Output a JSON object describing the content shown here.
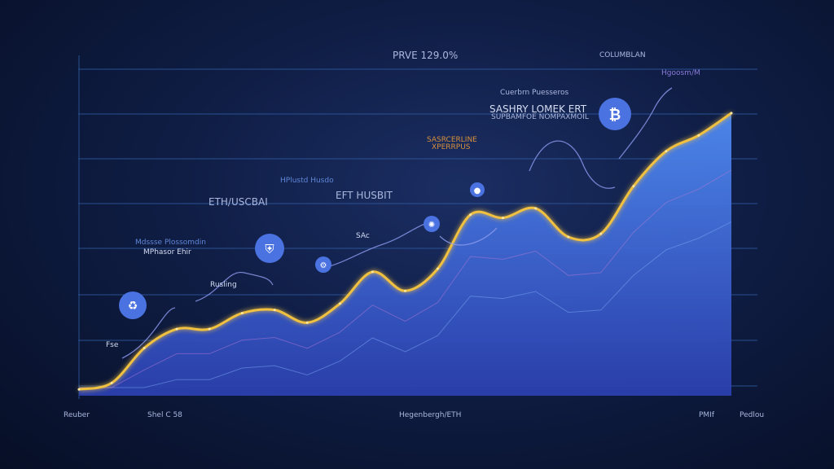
{
  "chart_data": {
    "type": "area",
    "title": "PRVE 129.0%",
    "xlabel": "",
    "ylabel": "",
    "top_right_label": "COLUMBLAN",
    "x_tick_labels": [
      "Reuber",
      "Shel C 58",
      "Hegenbergh/ETH",
      "PMIf",
      "Pedlou"
    ],
    "ylim": [
      0,
      100
    ],
    "grid": true,
    "series": [
      {
        "x": [
          0,
          5,
          10,
          15,
          20,
          25,
          30,
          35,
          40,
          45,
          50,
          55,
          60,
          65,
          70,
          75,
          80,
          85,
          90,
          95,
          100
        ],
        "values": [
          2,
          4,
          15,
          21,
          21,
          26,
          27,
          23,
          29,
          39,
          33,
          40,
          57,
          56,
          59,
          50,
          51,
          66,
          77,
          82,
          89
        ]
      }
    ],
    "annotations": [
      {
        "text": "PRVE 129.0%",
        "color": "#aab8de"
      },
      {
        "text": "COLUMBLAN",
        "color": "#aab8de"
      },
      {
        "text": "Hgoosm/M",
        "color": "#8a7bd8"
      },
      {
        "text": "Cuerbrn Puesseros",
        "color": "#aab8de"
      },
      {
        "text": "SASHRY LOMEK ERT",
        "color": "#d5ddf3"
      },
      {
        "text": "SUPBAMFOE NOMPAXMOIL",
        "color": "#aab8de"
      },
      {
        "text": "SASRCERLINE",
        "color": "#d8903a"
      },
      {
        "text": "XPERRPUS",
        "color": "#d8903a"
      },
      {
        "text": "HPlustd Husdo",
        "color": "#5f86d6"
      },
      {
        "text": "EFT HUSBIT",
        "color": "#aab8de"
      },
      {
        "text": "ETH/USCBAI",
        "color": "#aab8de"
      },
      {
        "text": "Mdssse Plossomdin",
        "color": "#5f86d6"
      },
      {
        "text": "MPhasor Ehir",
        "color": "#d5ddf3"
      },
      {
        "text": "Rusling",
        "color": "#d5ddf3"
      },
      {
        "text": "SAc",
        "color": "#d5ddf3"
      },
      {
        "text": "Fse",
        "color": "#d5ddf3"
      }
    ],
    "icons": [
      "recycle-icon",
      "shield-icon",
      "robot-icon",
      "atom-icon",
      "apple-icon",
      "bitcoin-icon"
    ],
    "colors": {
      "area_top": "#4d86ee",
      "area_bottom": "#2a3fb0",
      "line": "#f0c040",
      "grid": "#2f5aa0",
      "axis": "#e6e9f5",
      "icon_fill": "#4a72e0",
      "background": "#0f1d44"
    }
  }
}
